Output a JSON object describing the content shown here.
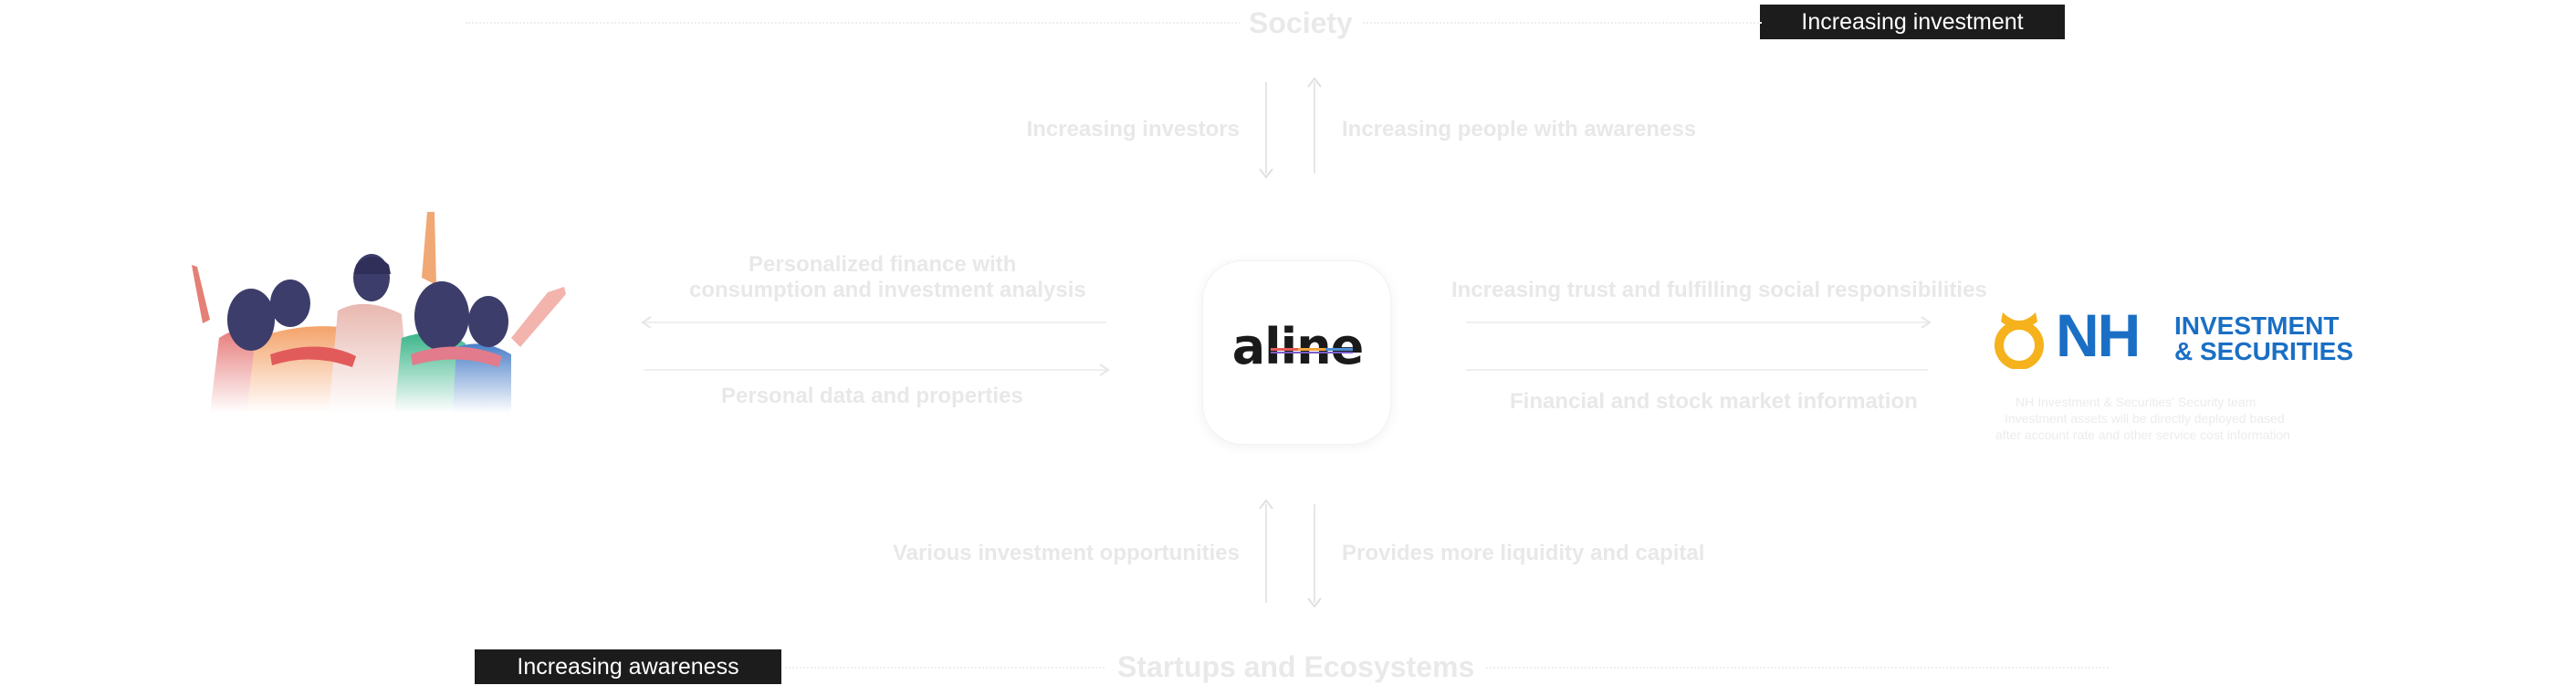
{
  "badges": {
    "investment": "Increasing investment",
    "awareness": "Increasing awareness"
  },
  "titles": {
    "top": "Society",
    "bottom": "Startups and Ecosystems"
  },
  "flows": {
    "top_left": "Increasing investors",
    "top_right": "Increasing people with awareness",
    "left_upper": [
      "Personalized finance with",
      "consumption and investment analysis"
    ],
    "left_lower": "Personal data and properties",
    "right_upper": "Increasing trust and fulfilling social responsibilities",
    "right_lower": "Financial and stock market information",
    "bottom_left": "Various investment opportunities",
    "bottom_right": "Provides more liquidity and capital"
  },
  "center": {
    "logo_text": "aline"
  },
  "partner": {
    "logo_main": "NH",
    "logo_line1": "INVESTMENT",
    "logo_line2": "& SECURITIES",
    "caption": [
      "NH Investment & Securities' Security team",
      "Investment assets will be directly deployed based",
      "after account rate and other service cost information"
    ]
  },
  "colors": {
    "badge_bg": "#1c1c1c",
    "nh_blue": "#1a6fc4",
    "nh_yellow": "#f5b21c",
    "logo_text": "#1a1a1a"
  },
  "icons": {
    "people": "people-group-illustration",
    "nh_symbol": "nh-symbol-icon"
  }
}
